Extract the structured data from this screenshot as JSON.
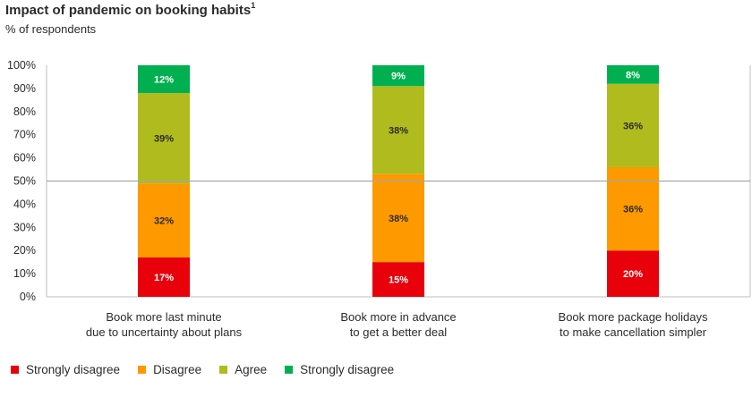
{
  "title": "Impact of pandemic on booking habits",
  "title_sup": "1",
  "subtitle": "% of respondents",
  "chart_data": {
    "type": "bar",
    "stacked": true,
    "title": "Impact of pandemic on booking habits",
    "ylabel": "% of respondents",
    "ylim": [
      0,
      100
    ],
    "yticks": [
      "0%",
      "10%",
      "20%",
      "30%",
      "40%",
      "50%",
      "60%",
      "70%",
      "80%",
      "90%",
      "100%"
    ],
    "categories": [
      [
        "Book more last minute",
        "due to uncertainty about plans"
      ],
      [
        "Book more in advance",
        "to get a better deal"
      ],
      [
        "Book more package holidays",
        "to make cancellation simpler"
      ]
    ],
    "series": [
      {
        "name": "Strongly disagree",
        "color": "#e8000b",
        "values": [
          17,
          15,
          20
        ],
        "labels": [
          "17%",
          "15%",
          "20%"
        ],
        "label_color": "#ffffff"
      },
      {
        "name": "Disagree",
        "color": "#fe9900",
        "values": [
          32,
          38,
          36
        ],
        "labels": [
          "32%",
          "38%",
          "36%"
        ],
        "label_color": "#2b2b2b"
      },
      {
        "name": "Agree",
        "color": "#b0bb1e",
        "values": [
          39,
          38,
          36
        ],
        "labels": [
          "39%",
          "38%",
          "36%"
        ],
        "label_color": "#2b2b2b"
      },
      {
        "name": "Strongly disagree",
        "color": "#00b050",
        "values": [
          12,
          9,
          8
        ],
        "labels": [
          "12%",
          "9%",
          "8%"
        ],
        "label_color": "#ffffff"
      }
    ],
    "reference_line": 50,
    "legend_position": "bottom-left"
  }
}
